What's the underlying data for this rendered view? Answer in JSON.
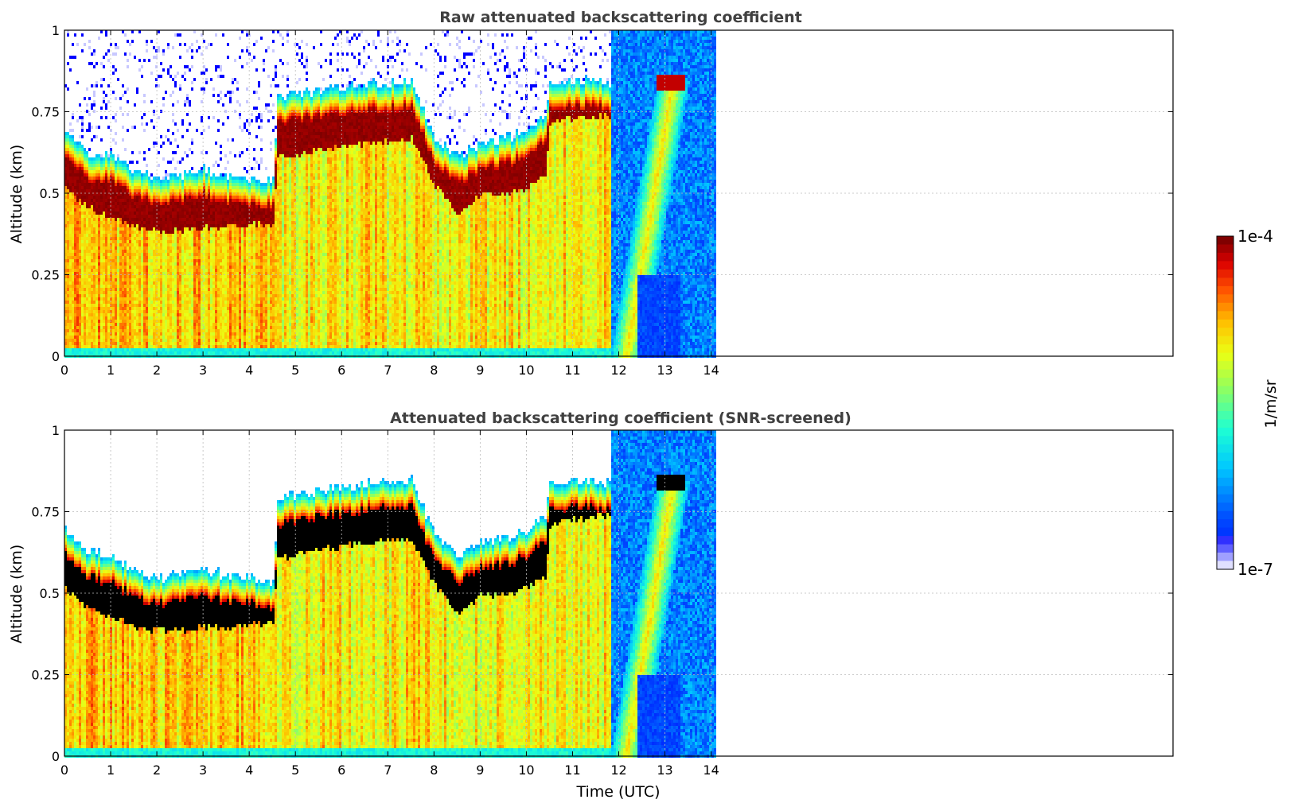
{
  "chart_data": [
    {
      "type": "heatmap",
      "title": "Raw attenuated backscattering coefficient",
      "xlabel": "",
      "ylabel": "Altitude (km)",
      "xlim": [
        0,
        24
      ],
      "ylim": [
        0,
        1
      ],
      "x_ticks": [
        "0",
        "1",
        "2",
        "3",
        "4",
        "5",
        "6",
        "7",
        "8",
        "9",
        "10",
        "11",
        "12",
        "13",
        "14"
      ],
      "y_ticks": [
        "0",
        "0.25",
        "0.5",
        "0.75",
        "1"
      ],
      "grid": true,
      "data_extent_x": [
        0,
        14.1
      ],
      "screened": false,
      "cloud_base_km": [
        [
          0,
          0.52
        ],
        [
          0.5,
          0.46
        ],
        [
          1,
          0.43
        ],
        [
          1.5,
          0.4
        ],
        [
          2,
          0.39
        ],
        [
          2.5,
          0.39
        ],
        [
          3,
          0.4
        ],
        [
          3.5,
          0.4
        ],
        [
          4,
          0.41
        ],
        [
          4.5,
          0.41
        ],
        [
          4.6,
          0.61
        ],
        [
          5.5,
          0.64
        ],
        [
          6.5,
          0.66
        ],
        [
          7.5,
          0.67
        ],
        [
          8,
          0.53
        ],
        [
          8.5,
          0.44
        ],
        [
          9,
          0.5
        ],
        [
          9.5,
          0.5
        ],
        [
          10,
          0.52
        ],
        [
          10.4,
          0.56
        ],
        [
          10.5,
          0.72
        ],
        [
          11.5,
          0.74
        ],
        [
          11.8,
          0.74
        ]
      ],
      "cloud_top_km": [
        [
          0,
          0.7
        ],
        [
          0.5,
          0.63
        ],
        [
          1,
          0.62
        ],
        [
          1.5,
          0.57
        ],
        [
          2,
          0.55
        ],
        [
          2.5,
          0.56
        ],
        [
          3,
          0.58
        ],
        [
          3.5,
          0.56
        ],
        [
          4,
          0.55
        ],
        [
          4.5,
          0.54
        ],
        [
          4.6,
          0.8
        ],
        [
          5.5,
          0.82
        ],
        [
          6.5,
          0.84
        ],
        [
          7.5,
          0.85
        ],
        [
          8,
          0.68
        ],
        [
          8.5,
          0.62
        ],
        [
          9,
          0.66
        ],
        [
          9.5,
          0.67
        ],
        [
          10,
          0.7
        ],
        [
          10.4,
          0.75
        ],
        [
          10.5,
          0.85
        ],
        [
          11.5,
          0.85
        ],
        [
          11.8,
          0.84
        ]
      ]
    },
    {
      "type": "heatmap",
      "title": "Attenuated backscattering coefficient (SNR-screened)",
      "xlabel": "Time (UTC)",
      "ylabel": "Altitude (km)",
      "xlim": [
        0,
        24
      ],
      "ylim": [
        0,
        1
      ],
      "x_ticks": [
        "0",
        "1",
        "2",
        "3",
        "4",
        "5",
        "6",
        "7",
        "8",
        "9",
        "10",
        "11",
        "12",
        "13",
        "14"
      ],
      "y_ticks": [
        "0",
        "0.25",
        "0.5",
        "0.75",
        "1"
      ],
      "grid": true,
      "data_extent_x": [
        0,
        14.1
      ],
      "screened": true
    }
  ],
  "colorbar": {
    "label": "1/m/sr",
    "max_label": "1e-4",
    "min_label": "1e-7",
    "colors": [
      "#eeeeff",
      "#b0b0ff",
      "#5050ff",
      "#0000ff",
      "#0050ff",
      "#00a0ff",
      "#00e8ff",
      "#40ff c0",
      "#a0ff60",
      "#e8ff10",
      "#ffd000",
      "#ff8800",
      "#ff3000",
      "#d00000",
      "#800000"
    ]
  }
}
